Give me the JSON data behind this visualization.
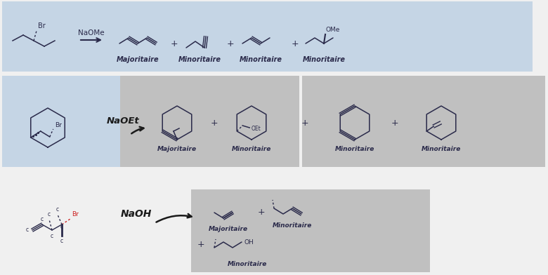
{
  "bg_color": "#f0f0f0",
  "section1_bg": "#c5d5e5",
  "section2_left_bg": "#c5d5e5",
  "section2_right1_bg": "#c0c0c0",
  "section2_right2_bg": "#c0c0c0",
  "section3_bg": "#c0c0c0",
  "label_maj": "Majoritaire",
  "label_min": "Minoritaire",
  "reagent1": "NaOMe",
  "reagent2": "NaOEt",
  "reagent3": "NaOH"
}
